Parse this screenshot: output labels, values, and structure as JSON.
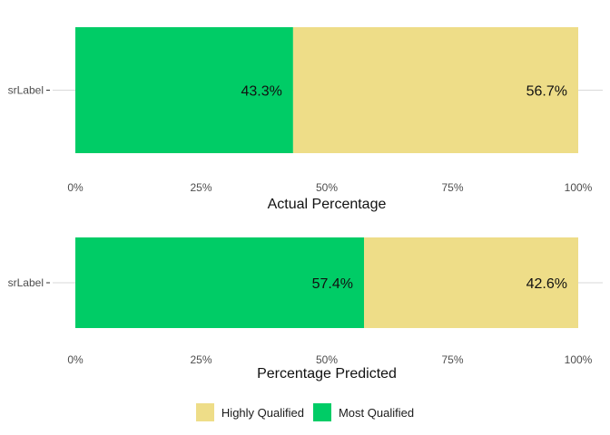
{
  "colors": {
    "most_qualified": "#00CC66",
    "highly_qualified": "#EEDD88",
    "tick_text": "#4d4d4d",
    "grid": "#d9d9d9"
  },
  "legend": {
    "items": [
      {
        "label": "Highly Qualified",
        "color": "#EEDD88"
      },
      {
        "label": "Most Qualified",
        "color": "#00CC66"
      }
    ]
  },
  "chart_data": [
    {
      "type": "bar",
      "orientation": "horizontal",
      "stacked": true,
      "xlabel": "Actual Percentage",
      "category": "srLabel",
      "xlim": [
        0,
        100
      ],
      "x_ticks": [
        "0%",
        "25%",
        "50%",
        "75%",
        "100%"
      ],
      "series": [
        {
          "name": "Most Qualified",
          "value": 43.3,
          "label": "43.3%"
        },
        {
          "name": "Highly Qualified",
          "value": 56.7,
          "label": "56.7%"
        }
      ]
    },
    {
      "type": "bar",
      "orientation": "horizontal",
      "stacked": true,
      "xlabel": "Percentage Predicted",
      "category": "srLabel",
      "xlim": [
        0,
        100
      ],
      "x_ticks": [
        "0%",
        "25%",
        "50%",
        "75%",
        "100%"
      ],
      "series": [
        {
          "name": "Most Qualified",
          "value": 57.4,
          "label": "57.4%"
        },
        {
          "name": "Highly Qualified",
          "value": 42.6,
          "label": "42.6%"
        }
      ]
    }
  ]
}
